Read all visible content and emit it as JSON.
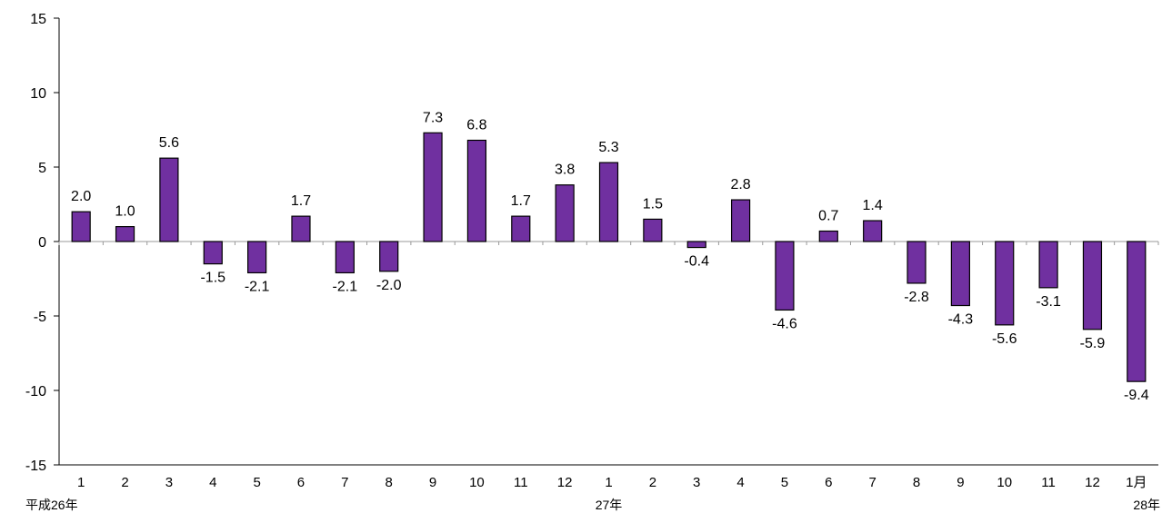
{
  "chart_data": {
    "type": "bar",
    "categories": [
      "1",
      "2",
      "3",
      "4",
      "5",
      "6",
      "7",
      "8",
      "9",
      "10",
      "11",
      "12",
      "1",
      "2",
      "3",
      "4",
      "5",
      "6",
      "7",
      "8",
      "9",
      "10",
      "11",
      "12",
      "1月"
    ],
    "values": [
      2.0,
      1.0,
      5.6,
      -1.5,
      -2.1,
      1.7,
      -2.1,
      -2.0,
      7.3,
      6.8,
      1.7,
      3.8,
      5.3,
      1.5,
      -0.4,
      2.8,
      -4.6,
      0.7,
      1.4,
      -2.8,
      -4.3,
      -5.6,
      -3.1,
      -5.9,
      -9.4
    ],
    "value_labels": [
      "2.0",
      "1.0",
      "5.6",
      "-1.5",
      "-2.1",
      "1.7",
      "-2.1",
      "-2.0",
      "7.3",
      "6.8",
      "1.7",
      "3.8",
      "5.3",
      "1.5",
      "-0.4",
      "2.8",
      "-4.6",
      "0.7",
      "1.4",
      "-2.8",
      "-4.3",
      "-5.6",
      "-3.1",
      "-5.9",
      "-9.4"
    ],
    "year_labels": [
      {
        "category_index": 0,
        "text": "平成26年"
      },
      {
        "category_index": 12,
        "text": "27年"
      },
      {
        "category_index": 24,
        "text": "28年"
      }
    ],
    "ylim": [
      -15,
      15
    ],
    "yticks": [
      -15,
      -10,
      -5,
      0,
      5,
      10,
      15
    ],
    "ytick_labels": [
      "-15",
      "-10",
      "-5",
      "0",
      "5",
      "10",
      "15"
    ],
    "title": "",
    "xlabel": "",
    "ylabel": "",
    "grid": false,
    "colors": {
      "bar": "#7030a0",
      "bar_border": "#000000",
      "axis": "#000000",
      "zero_line": "#999999"
    }
  }
}
